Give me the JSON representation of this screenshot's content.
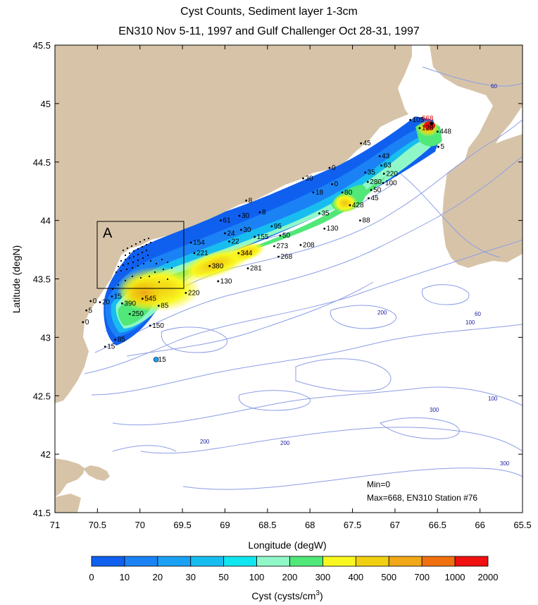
{
  "title": {
    "line1": "Cyst Counts, Sediment layer 1-3cm",
    "line2": "EN310 Nov 5-11, 1997 and Gulf Challenger Oct 28-31, 1997"
  },
  "axes": {
    "xlabel": "Longitude (degW)",
    "ylabel": "Latitude (degN)",
    "xticks": [
      "71",
      "70.5",
      "70",
      "69.5",
      "69",
      "68.5",
      "68",
      "67.5",
      "67",
      "66.5",
      "66",
      "65.5"
    ],
    "yticks": [
      "45.5",
      "45",
      "44.5",
      "44",
      "43.5",
      "43",
      "42.5",
      "42",
      "41.5"
    ],
    "xlim": [
      71,
      65.5
    ],
    "ylim": [
      41.5,
      45.5
    ]
  },
  "inset_box": {
    "label": "A"
  },
  "annotation": {
    "min": "Min=0",
    "max": "Max=668, EN310 Station #76"
  },
  "colorbar": {
    "label": "Cyst (cysts/cm",
    "label_sup": "3",
    "label_end": ")",
    "ticks": [
      "0",
      "10",
      "20",
      "30",
      "50",
      "100",
      "200",
      "300",
      "400",
      "500",
      "700",
      "1000",
      "2000"
    ],
    "colors": [
      "#1060f0",
      "#1b82f5",
      "#1aa0f5",
      "#18bdf0",
      "#10e6f0",
      "#90f8c8",
      "#50e878",
      "#f8f820",
      "#f0d010",
      "#f0a818",
      "#f07010",
      "#f01010"
    ]
  },
  "colors": {
    "land": "#d7c4a8",
    "water": "#ffffff",
    "contour": "#8c9ee6",
    "highlight_label": "#e00000"
  },
  "contour_labels": [
    "60",
    "200",
    "60",
    "100",
    "100",
    "300",
    "200",
    "200",
    "300"
  ],
  "stations": [
    {
      "label": "668",
      "lon": 66.57,
      "lat": 44.83,
      "highlight": true
    },
    {
      "label": "105",
      "lon": 66.82,
      "lat": 44.86
    },
    {
      "label": "128",
      "lon": 66.71,
      "lat": 44.79
    },
    {
      "label": "448",
      "lon": 66.5,
      "lat": 44.76
    },
    {
      "label": "5",
      "lon": 66.49,
      "lat": 44.63
    },
    {
      "label": "45",
      "lon": 67.4,
      "lat": 44.66
    },
    {
      "label": "43",
      "lon": 67.18,
      "lat": 44.55
    },
    {
      "label": "63",
      "lon": 67.16,
      "lat": 44.47
    },
    {
      "label": "220",
      "lon": 67.13,
      "lat": 44.4
    },
    {
      "label": "100",
      "lon": 67.14,
      "lat": 44.32
    },
    {
      "label": "0",
      "lon": 67.77,
      "lat": 44.45
    },
    {
      "label": "35",
      "lon": 67.35,
      "lat": 44.41
    },
    {
      "label": "280",
      "lon": 67.32,
      "lat": 44.33
    },
    {
      "label": "50",
      "lon": 67.28,
      "lat": 44.26
    },
    {
      "label": "45",
      "lon": 67.31,
      "lat": 44.19
    },
    {
      "label": "428",
      "lon": 67.53,
      "lat": 44.13
    },
    {
      "label": "88",
      "lon": 67.41,
      "lat": 44.0
    },
    {
      "label": "30",
      "lon": 68.08,
      "lat": 44.36
    },
    {
      "label": "0",
      "lon": 67.74,
      "lat": 44.31
    },
    {
      "label": "80",
      "lon": 67.62,
      "lat": 44.24
    },
    {
      "label": "18",
      "lon": 67.96,
      "lat": 44.24
    },
    {
      "label": "35",
      "lon": 67.89,
      "lat": 44.06
    },
    {
      "label": "130",
      "lon": 67.83,
      "lat": 43.93
    },
    {
      "label": "8",
      "lon": 68.75,
      "lat": 44.17
    },
    {
      "label": "8",
      "lon": 68.59,
      "lat": 44.07
    },
    {
      "label": "30",
      "lon": 68.83,
      "lat": 44.04
    },
    {
      "label": "61",
      "lon": 69.05,
      "lat": 44.0
    },
    {
      "label": "30",
      "lon": 68.81,
      "lat": 43.92
    },
    {
      "label": "95",
      "lon": 68.45,
      "lat": 43.95
    },
    {
      "label": "24",
      "lon": 69.0,
      "lat": 43.89
    },
    {
      "label": "155",
      "lon": 68.65,
      "lat": 43.86
    },
    {
      "label": "50",
      "lon": 68.35,
      "lat": 43.87
    },
    {
      "label": "22",
      "lon": 68.95,
      "lat": 43.82
    },
    {
      "label": "154",
      "lon": 69.4,
      "lat": 43.81
    },
    {
      "label": "273",
      "lon": 68.42,
      "lat": 43.78
    },
    {
      "label": "208",
      "lon": 68.11,
      "lat": 43.79
    },
    {
      "label": "221",
      "lon": 69.36,
      "lat": 43.72
    },
    {
      "label": "344",
      "lon": 68.84,
      "lat": 43.72
    },
    {
      "label": "268",
      "lon": 68.37,
      "lat": 43.69
    },
    {
      "label": "380",
      "lon": 69.18,
      "lat": 43.61
    },
    {
      "label": "281",
      "lon": 68.73,
      "lat": 43.59
    },
    {
      "label": "130",
      "lon": 69.08,
      "lat": 43.48
    },
    {
      "label": "220",
      "lon": 69.46,
      "lat": 43.38
    },
    {
      "label": "15",
      "lon": 70.33,
      "lat": 43.35
    },
    {
      "label": "20",
      "lon": 70.47,
      "lat": 43.3
    },
    {
      "label": "390",
      "lon": 70.21,
      "lat": 43.29
    },
    {
      "label": "545",
      "lon": 69.97,
      "lat": 43.33
    },
    {
      "label": "85",
      "lon": 69.78,
      "lat": 43.27
    },
    {
      "label": "250",
      "lon": 70.12,
      "lat": 43.2
    },
    {
      "label": "150",
      "lon": 69.88,
      "lat": 43.1
    },
    {
      "label": "0",
      "lon": 70.58,
      "lat": 43.31
    },
    {
      "label": "5",
      "lon": 70.63,
      "lat": 43.23
    },
    {
      "label": "0",
      "lon": 70.67,
      "lat": 43.13
    },
    {
      "label": "85",
      "lon": 70.29,
      "lat": 42.98
    },
    {
      "label": "15",
      "lon": 70.41,
      "lat": 42.92
    },
    {
      "label": "15",
      "lon": 69.81,
      "lat": 42.81,
      "isolated": true
    }
  ]
}
